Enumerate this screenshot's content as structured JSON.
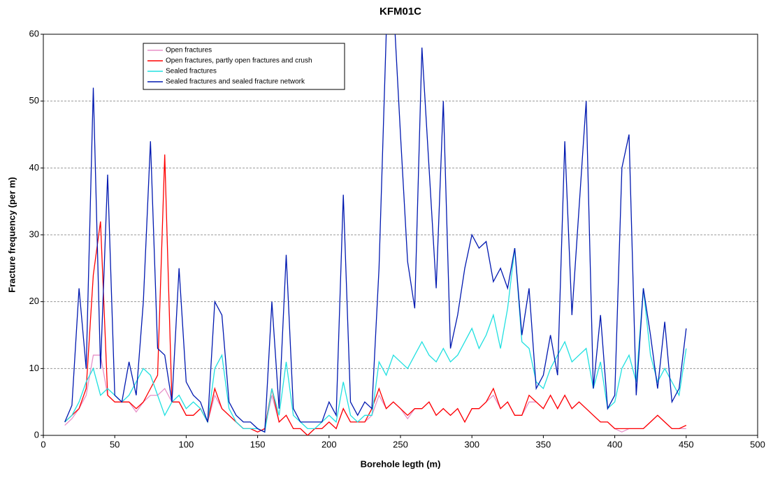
{
  "chart_data": {
    "type": "line",
    "title": "KFM01C",
    "x_label": "Borehole legth (m)",
    "y_label": "Fracture frequency (per m)",
    "x": [
      15,
      20,
      25,
      30,
      35,
      40,
      45,
      50,
      55,
      60,
      65,
      70,
      75,
      80,
      85,
      90,
      95,
      100,
      105,
      110,
      115,
      120,
      125,
      130,
      135,
      140,
      145,
      150,
      155,
      160,
      165,
      170,
      175,
      180,
      185,
      190,
      195,
      200,
      205,
      210,
      215,
      220,
      225,
      230,
      235,
      240,
      245,
      250,
      255,
      260,
      265,
      270,
      275,
      280,
      285,
      290,
      295,
      300,
      305,
      310,
      315,
      320,
      325,
      330,
      335,
      340,
      345,
      350,
      355,
      360,
      365,
      370,
      375,
      380,
      385,
      390,
      395,
      400,
      405,
      410,
      415,
      420,
      425,
      430,
      435,
      440,
      445,
      450
    ],
    "series": [
      {
        "name": "Open fractures",
        "color": "#e890c8",
        "values": [
          1.5,
          2.5,
          4,
          6,
          12,
          12,
          6,
          5,
          5,
          5,
          3.5,
          5,
          6,
          6,
          7,
          5,
          5,
          3,
          3,
          4,
          2,
          6,
          4,
          3,
          2,
          1,
          1,
          0.5,
          1,
          6,
          2,
          3,
          1,
          1,
          0,
          1,
          1,
          2,
          1,
          4,
          2,
          2,
          2,
          3,
          6,
          4,
          5,
          4,
          2.5,
          4,
          4,
          5,
          3,
          4,
          3,
          4,
          2,
          4,
          4,
          5,
          6,
          4,
          5,
          3,
          3,
          5,
          5,
          4,
          6,
          4,
          6,
          4,
          5,
          4,
          3,
          2,
          2,
          1,
          0.5,
          1,
          1,
          1,
          2,
          3,
          2,
          1,
          1,
          1
        ]
      },
      {
        "name": "Open fractures, partly open fractures and crush",
        "color": "#ff0000",
        "values": [
          2,
          3,
          4,
          7,
          24,
          32,
          6,
          5,
          5,
          5,
          4,
          5,
          7,
          9,
          42,
          5,
          5,
          3,
          3,
          4,
          2,
          7,
          4,
          3,
          2,
          1,
          1,
          0.5,
          1,
          7,
          2,
          3,
          1,
          1,
          0,
          1,
          1,
          2,
          1,
          4,
          2,
          2,
          2,
          4,
          7,
          4,
          5,
          4,
          3,
          4,
          4,
          5,
          3,
          4,
          3,
          4,
          2,
          4,
          4,
          5,
          7,
          4,
          5,
          3,
          3,
          6,
          5,
          4,
          6,
          4,
          6,
          4,
          5,
          4,
          3,
          2,
          2,
          1,
          1,
          1,
          1,
          1,
          2,
          3,
          2,
          1,
          1,
          1.5
        ]
      },
      {
        "name": "Sealed fractures",
        "color": "#20e0e0",
        "values": [
          2,
          3,
          5,
          8,
          10,
          6,
          7,
          6,
          5,
          6,
          8,
          10,
          9,
          6,
          3,
          5,
          6,
          4,
          5,
          4,
          2,
          10,
          12,
          4,
          2,
          1,
          1,
          1,
          0.5,
          7,
          3,
          11,
          3,
          2,
          1,
          1,
          2,
          3,
          2,
          8,
          3,
          2,
          3,
          3,
          11,
          9,
          12,
          11,
          10,
          12,
          14,
          12,
          11,
          13,
          11,
          12,
          14,
          16,
          13,
          15,
          18,
          13,
          19,
          28,
          14,
          13,
          8,
          7,
          10,
          12,
          14,
          11,
          12,
          13,
          7,
          11,
          4,
          5,
          10,
          12,
          8,
          22,
          12,
          8,
          10,
          8,
          6,
          13
        ]
      },
      {
        "name": "Sealed fractures and sealed fracture network",
        "color": "#0018b0",
        "values": [
          2,
          4.5,
          22,
          10,
          52,
          10,
          39,
          6,
          5,
          11,
          6,
          20,
          44,
          13,
          12,
          5,
          25,
          8,
          6,
          5,
          2,
          20,
          18,
          5,
          3,
          2,
          2,
          1,
          0.5,
          20,
          4,
          27,
          4,
          2,
          2,
          2,
          2,
          5,
          3,
          36,
          5,
          3,
          5,
          4,
          25,
          60,
          65,
          45,
          26,
          19,
          58,
          40,
          22,
          50,
          13,
          18,
          25,
          30,
          28,
          29,
          23,
          25,
          22,
          28,
          15,
          22,
          7,
          9,
          15,
          9,
          44,
          18,
          34,
          50,
          7,
          18,
          4,
          6,
          40,
          45,
          6,
          22,
          15,
          7,
          17,
          5,
          7,
          16
        ]
      }
    ],
    "xlim": [
      0,
      500
    ],
    "xticks": [
      0,
      50,
      100,
      150,
      200,
      250,
      300,
      350,
      400,
      450,
      500
    ],
    "ylim": [
      0,
      60
    ],
    "yticks": [
      0,
      10,
      20,
      30,
      40,
      50,
      60
    ],
    "grid": true,
    "legend": "upper left"
  }
}
